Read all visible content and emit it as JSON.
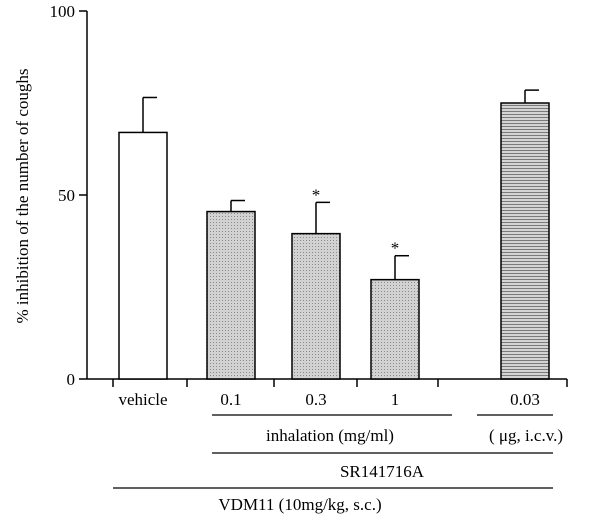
{
  "chart_data": {
    "type": "bar",
    "ylabel": "% inhibition of the number of coughs",
    "ylim": [
      0,
      100
    ],
    "yticks": [
      0,
      50,
      100
    ],
    "categories": [
      "vehicle",
      "0.1",
      "0.3",
      "1",
      "0.03"
    ],
    "values": [
      67,
      45.5,
      39.5,
      27,
      75
    ],
    "errors": [
      9.5,
      3,
      8.5,
      6.5,
      3.5
    ],
    "significance": [
      "",
      "",
      "*",
      "*",
      ""
    ],
    "fills": [
      "white",
      "dotted",
      "dotted",
      "dotted",
      "hstripes"
    ],
    "group_labels": {
      "inhalation": "inhalation (mg/ml)",
      "icv": "( μg, i.c.v.)",
      "sr": "SR141716A",
      "vdm": "VDM11 (10mg/kg, s.c.)"
    }
  },
  "colors": {
    "bar_gray": "#c4c4c4",
    "line": "#000000"
  }
}
